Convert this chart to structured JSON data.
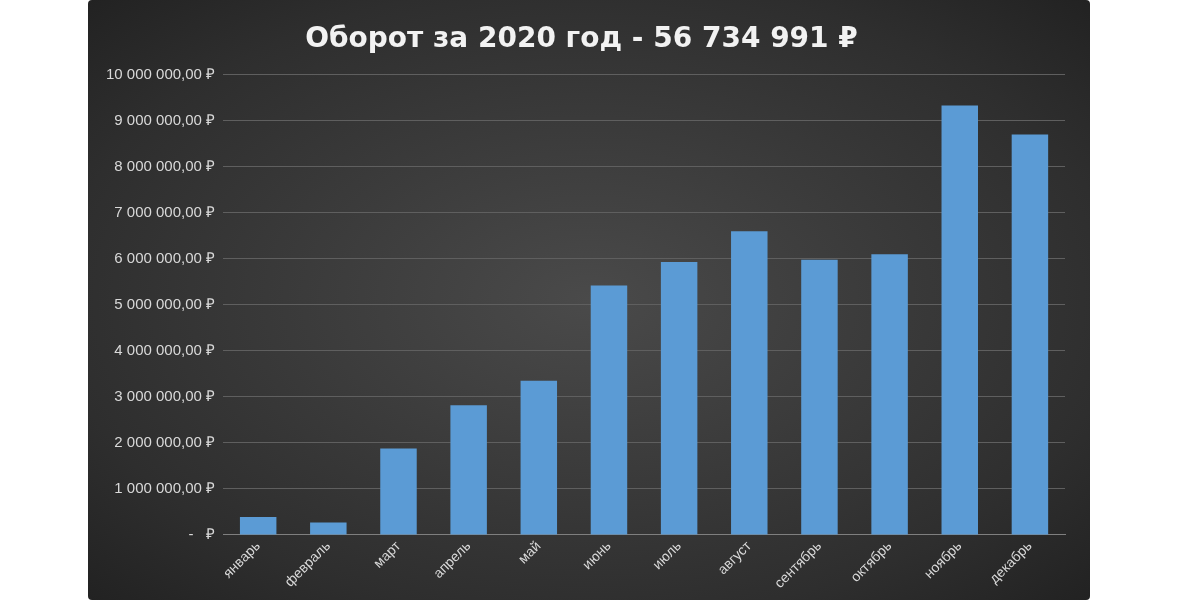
{
  "chart_data": {
    "type": "bar",
    "title": "Оборот за 2020 год - 56 734 991 ₽",
    "categories": [
      "январь",
      "февраль",
      "март",
      "апрель",
      "май",
      "июнь",
      "июль",
      "август",
      "сентябрь",
      "октябрь",
      "ноябрь",
      "декабрь"
    ],
    "values": [
      390000,
      270000,
      1880000,
      2820000,
      3350000,
      5420000,
      5930000,
      6600000,
      5980000,
      6100000,
      9330000,
      8700000
    ],
    "color": "#5b9bd5",
    "ylim": [
      0,
      10000000
    ],
    "yticks": [
      {
        "value": 0,
        "label": "-   ₽"
      },
      {
        "value": 1000000,
        "label": "1 000 000,00 ₽"
      },
      {
        "value": 2000000,
        "label": "2 000 000,00 ₽"
      },
      {
        "value": 3000000,
        "label": "3 000 000,00 ₽"
      },
      {
        "value": 4000000,
        "label": "4 000 000,00 ₽"
      },
      {
        "value": 5000000,
        "label": "5 000 000,00 ₽"
      },
      {
        "value": 6000000,
        "label": "6 000 000,00 ₽"
      },
      {
        "value": 7000000,
        "label": "7 000 000,00 ₽"
      },
      {
        "value": 8000000,
        "label": "8 000 000,00 ₽"
      },
      {
        "value": 9000000,
        "label": "9 000 000,00 ₽"
      },
      {
        "value": 10000000,
        "label": "10 000 000,00 ₽"
      }
    ],
    "grid": "y",
    "legend": false
  }
}
